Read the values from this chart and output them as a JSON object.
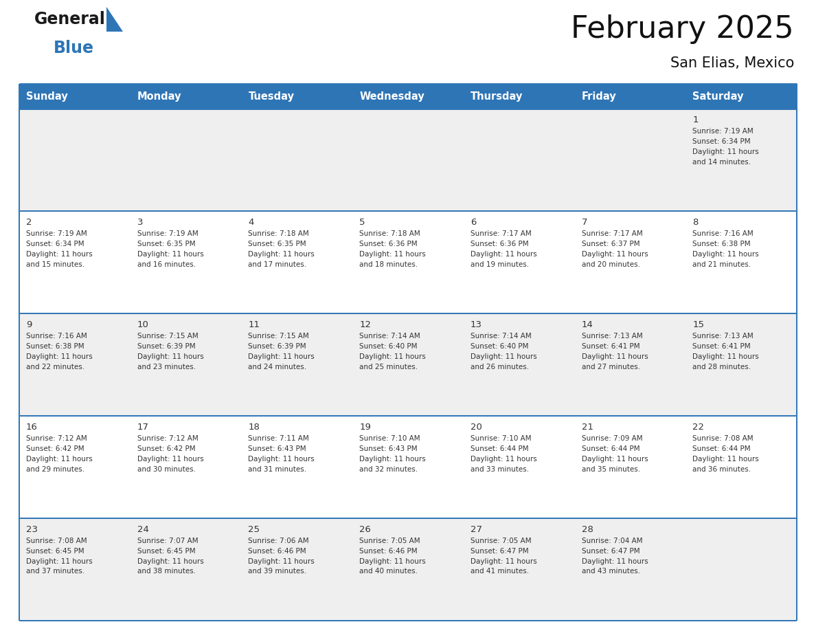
{
  "title": "February 2025",
  "subtitle": "San Elias, Mexico",
  "header_bg": "#2E75B6",
  "header_text": "#FFFFFF",
  "day_names": [
    "Sunday",
    "Monday",
    "Tuesday",
    "Wednesday",
    "Thursday",
    "Friday",
    "Saturday"
  ],
  "odd_row_bg": "#EFEFEF",
  "even_row_bg": "#FFFFFF",
  "border_color": "#2E75B6",
  "date_color": "#333333",
  "info_color": "#333333",
  "date_font_size": 9.5,
  "info_font_size": 7.5,
  "header_font_size": 10.5,
  "calendar_data": [
    [
      {
        "day": "",
        "info": ""
      },
      {
        "day": "",
        "info": ""
      },
      {
        "day": "",
        "info": ""
      },
      {
        "day": "",
        "info": ""
      },
      {
        "day": "",
        "info": ""
      },
      {
        "day": "",
        "info": ""
      },
      {
        "day": "1",
        "info": "Sunrise: 7:19 AM\nSunset: 6:34 PM\nDaylight: 11 hours\nand 14 minutes."
      }
    ],
    [
      {
        "day": "2",
        "info": "Sunrise: 7:19 AM\nSunset: 6:34 PM\nDaylight: 11 hours\nand 15 minutes."
      },
      {
        "day": "3",
        "info": "Sunrise: 7:19 AM\nSunset: 6:35 PM\nDaylight: 11 hours\nand 16 minutes."
      },
      {
        "day": "4",
        "info": "Sunrise: 7:18 AM\nSunset: 6:35 PM\nDaylight: 11 hours\nand 17 minutes."
      },
      {
        "day": "5",
        "info": "Sunrise: 7:18 AM\nSunset: 6:36 PM\nDaylight: 11 hours\nand 18 minutes."
      },
      {
        "day": "6",
        "info": "Sunrise: 7:17 AM\nSunset: 6:36 PM\nDaylight: 11 hours\nand 19 minutes."
      },
      {
        "day": "7",
        "info": "Sunrise: 7:17 AM\nSunset: 6:37 PM\nDaylight: 11 hours\nand 20 minutes."
      },
      {
        "day": "8",
        "info": "Sunrise: 7:16 AM\nSunset: 6:38 PM\nDaylight: 11 hours\nand 21 minutes."
      }
    ],
    [
      {
        "day": "9",
        "info": "Sunrise: 7:16 AM\nSunset: 6:38 PM\nDaylight: 11 hours\nand 22 minutes."
      },
      {
        "day": "10",
        "info": "Sunrise: 7:15 AM\nSunset: 6:39 PM\nDaylight: 11 hours\nand 23 minutes."
      },
      {
        "day": "11",
        "info": "Sunrise: 7:15 AM\nSunset: 6:39 PM\nDaylight: 11 hours\nand 24 minutes."
      },
      {
        "day": "12",
        "info": "Sunrise: 7:14 AM\nSunset: 6:40 PM\nDaylight: 11 hours\nand 25 minutes."
      },
      {
        "day": "13",
        "info": "Sunrise: 7:14 AM\nSunset: 6:40 PM\nDaylight: 11 hours\nand 26 minutes."
      },
      {
        "day": "14",
        "info": "Sunrise: 7:13 AM\nSunset: 6:41 PM\nDaylight: 11 hours\nand 27 minutes."
      },
      {
        "day": "15",
        "info": "Sunrise: 7:13 AM\nSunset: 6:41 PM\nDaylight: 11 hours\nand 28 minutes."
      }
    ],
    [
      {
        "day": "16",
        "info": "Sunrise: 7:12 AM\nSunset: 6:42 PM\nDaylight: 11 hours\nand 29 minutes."
      },
      {
        "day": "17",
        "info": "Sunrise: 7:12 AM\nSunset: 6:42 PM\nDaylight: 11 hours\nand 30 minutes."
      },
      {
        "day": "18",
        "info": "Sunrise: 7:11 AM\nSunset: 6:43 PM\nDaylight: 11 hours\nand 31 minutes."
      },
      {
        "day": "19",
        "info": "Sunrise: 7:10 AM\nSunset: 6:43 PM\nDaylight: 11 hours\nand 32 minutes."
      },
      {
        "day": "20",
        "info": "Sunrise: 7:10 AM\nSunset: 6:44 PM\nDaylight: 11 hours\nand 33 minutes."
      },
      {
        "day": "21",
        "info": "Sunrise: 7:09 AM\nSunset: 6:44 PM\nDaylight: 11 hours\nand 35 minutes."
      },
      {
        "day": "22",
        "info": "Sunrise: 7:08 AM\nSunset: 6:44 PM\nDaylight: 11 hours\nand 36 minutes."
      }
    ],
    [
      {
        "day": "23",
        "info": "Sunrise: 7:08 AM\nSunset: 6:45 PM\nDaylight: 11 hours\nand 37 minutes."
      },
      {
        "day": "24",
        "info": "Sunrise: 7:07 AM\nSunset: 6:45 PM\nDaylight: 11 hours\nand 38 minutes."
      },
      {
        "day": "25",
        "info": "Sunrise: 7:06 AM\nSunset: 6:46 PM\nDaylight: 11 hours\nand 39 minutes."
      },
      {
        "day": "26",
        "info": "Sunrise: 7:05 AM\nSunset: 6:46 PM\nDaylight: 11 hours\nand 40 minutes."
      },
      {
        "day": "27",
        "info": "Sunrise: 7:05 AM\nSunset: 6:47 PM\nDaylight: 11 hours\nand 41 minutes."
      },
      {
        "day": "28",
        "info": "Sunrise: 7:04 AM\nSunset: 6:47 PM\nDaylight: 11 hours\nand 43 minutes."
      },
      {
        "day": "",
        "info": ""
      }
    ]
  ],
  "logo_text_general": "General",
  "logo_text_blue": "Blue",
  "logo_triangle_color": "#2E75B6",
  "logo_general_color": "#1A1A1A"
}
